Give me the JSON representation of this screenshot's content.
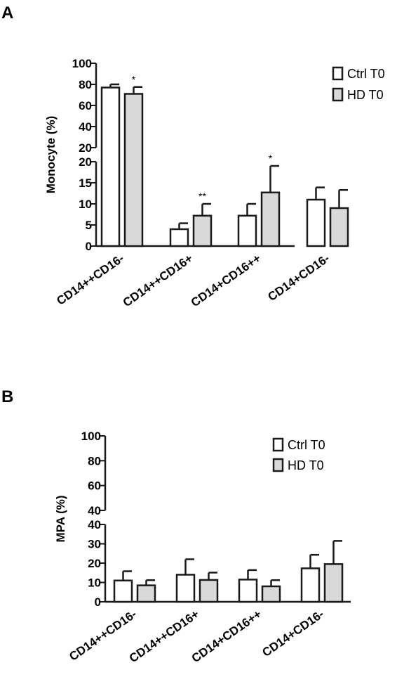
{
  "panels": [
    {
      "letter": "A",
      "legend": [
        "Ctrl T0",
        "HD  T0"
      ]
    },
    {
      "letter": "B",
      "legend": [
        "Ctrl T0",
        "HD T0"
      ]
    }
  ],
  "colors": {
    "ctrl": "#ffffff",
    "hd": "#d9d9d9",
    "stroke": "#1a1a1a"
  },
  "chart_data": [
    {
      "type": "bar",
      "title": "",
      "xlabel": "",
      "ylabel": "Monocyte (%)",
      "categories": [
        "CD14++CD16-",
        "CD14++CD16+",
        "CD14+CD16++",
        "CD14+CD16-"
      ],
      "series": [
        {
          "name": "Ctrl T0",
          "values": [
            77,
            4,
            7.2,
            11
          ],
          "errors": [
            3,
            1.4,
            2.8,
            2.9
          ]
        },
        {
          "name": "HD  T0",
          "values": [
            71,
            7.2,
            12.7,
            9
          ],
          "errors": [
            6.5,
            2.8,
            6.3,
            4.3
          ]
        }
      ],
      "annotations": [
        "*",
        "**",
        "*",
        ""
      ],
      "broken_axis": true,
      "y_segments": [
        {
          "range": [
            0,
            20
          ],
          "ticks": [
            "0",
            "5",
            "10",
            "15",
            "20"
          ]
        },
        {
          "range": [
            20,
            100
          ],
          "ticks": [
            "20",
            "40",
            "60",
            "80",
            "100"
          ]
        }
      ],
      "legend_position": "top-right",
      "grid": false
    },
    {
      "type": "bar",
      "title": "",
      "xlabel": "",
      "ylabel": "MPA (%)",
      "categories": [
        "CD14++CD16-",
        "CD14++CD16+",
        "CD14+CD16++",
        "CD14+CD16-"
      ],
      "series": [
        {
          "name": "Ctrl T0",
          "values": [
            11,
            14,
            11.5,
            17.3
          ],
          "errors": [
            4.8,
            8,
            4.9,
            7
          ]
        },
        {
          "name": "HD T0",
          "values": [
            8.5,
            11.3,
            8,
            19.5
          ],
          "errors": [
            2.7,
            3.8,
            3.2,
            12
          ]
        }
      ],
      "annotations": [
        "",
        "",
        "",
        ""
      ],
      "broken_axis": true,
      "y_segments": [
        {
          "range": [
            0,
            40
          ],
          "ticks": [
            "0",
            "10",
            "20",
            "30",
            "40"
          ]
        },
        {
          "range": [
            40,
            100
          ],
          "ticks": [
            "40",
            "60",
            "80",
            "100"
          ]
        }
      ],
      "legend_position": "top-right",
      "grid": false
    }
  ]
}
